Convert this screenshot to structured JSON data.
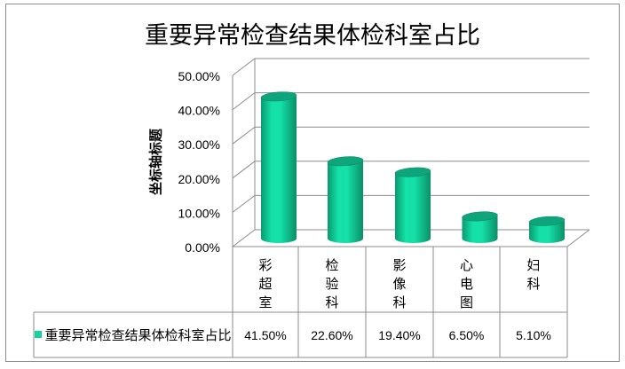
{
  "chart_data": {
    "type": "bar",
    "title": "重要异常检查结果体检科室占比",
    "ylabel": "坐标轴标题",
    "xlabel": "",
    "categories": [
      "彩超室",
      "检验科",
      "影像科",
      "心电图",
      "妇科"
    ],
    "series": [
      {
        "name": "重要异常检查结果体检科室占比",
        "values": [
          41.5,
          22.6,
          19.4,
          6.5,
          5.1
        ],
        "color": "#11d39f"
      }
    ],
    "value_labels": [
      "41.50%",
      "22.60%",
      "19.40%",
      "6.50%",
      "5.10%"
    ],
    "ylim": [
      0,
      50
    ],
    "yticks": [
      "0.00%",
      "10.00%",
      "20.00%",
      "30.00%",
      "40.00%",
      "50.00%"
    ],
    "grid": true,
    "style": "3d-cylinder with data table",
    "legend": "data-table"
  }
}
